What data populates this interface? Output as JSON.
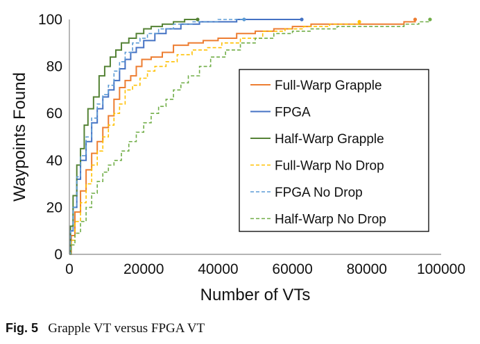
{
  "caption": {
    "label": "Fig. 5",
    "text": "Grapple VT versus FPGA VT"
  },
  "chart_data": {
    "type": "line",
    "title": "",
    "xlabel": "Number of VTs",
    "ylabel": "Waypoints Found",
    "xlim": [
      0,
      100000
    ],
    "ylim": [
      0,
      100
    ],
    "xticks": [
      "0",
      "20000",
      "40000",
      "60000",
      "80000",
      "100000"
    ],
    "yticks": [
      "0",
      "20",
      "40",
      "60",
      "80",
      "100"
    ],
    "grid": false,
    "legend_position": "bottom-right",
    "series": [
      {
        "name": "Full-Warp Grapple",
        "color": "#ED7D31",
        "dash": "solid",
        "points": [
          [
            0,
            0
          ],
          [
            500,
            8
          ],
          [
            1500,
            18
          ],
          [
            3000,
            27
          ],
          [
            4500,
            36
          ],
          [
            6000,
            43
          ],
          [
            7500,
            48
          ],
          [
            9000,
            54
          ],
          [
            10500,
            59
          ],
          [
            12000,
            66
          ],
          [
            13500,
            71
          ],
          [
            15000,
            74
          ],
          [
            16500,
            76
          ],
          [
            18000,
            80
          ],
          [
            19500,
            83
          ],
          [
            22000,
            84
          ],
          [
            25000,
            86
          ],
          [
            28000,
            89
          ],
          [
            32000,
            90
          ],
          [
            36000,
            91
          ],
          [
            40000,
            92
          ],
          [
            45000,
            94
          ],
          [
            50000,
            95
          ],
          [
            55000,
            96
          ],
          [
            60000,
            97
          ],
          [
            65000,
            98
          ],
          [
            70000,
            98
          ],
          [
            80000,
            98
          ],
          [
            90000,
            99
          ],
          [
            93000,
            100
          ]
        ]
      },
      {
        "name": "FPGA",
        "color": "#4472C4",
        "dash": "solid",
        "points": [
          [
            0,
            0
          ],
          [
            300,
            10
          ],
          [
            1000,
            20
          ],
          [
            2000,
            32
          ],
          [
            3000,
            40
          ],
          [
            4500,
            48
          ],
          [
            6000,
            56
          ],
          [
            7500,
            62
          ],
          [
            9000,
            67
          ],
          [
            10500,
            70
          ],
          [
            12000,
            74
          ],
          [
            13500,
            79
          ],
          [
            15000,
            83
          ],
          [
            16500,
            86
          ],
          [
            18000,
            88
          ],
          [
            20000,
            91
          ],
          [
            23000,
            94
          ],
          [
            26000,
            96
          ],
          [
            30000,
            98
          ],
          [
            35000,
            99
          ],
          [
            45000,
            100
          ],
          [
            62500,
            100
          ]
        ]
      },
      {
        "name": "Half-Warp Grapple",
        "color": "#548235",
        "dash": "solid",
        "points": [
          [
            0,
            0
          ],
          [
            300,
            12
          ],
          [
            1000,
            25
          ],
          [
            2000,
            38
          ],
          [
            3000,
            45
          ],
          [
            4000,
            55
          ],
          [
            5000,
            62
          ],
          [
            6500,
            67
          ],
          [
            8000,
            76
          ],
          [
            9500,
            80
          ],
          [
            11000,
            84
          ],
          [
            12500,
            87
          ],
          [
            14000,
            90
          ],
          [
            16000,
            92
          ],
          [
            18000,
            94
          ],
          [
            20000,
            96
          ],
          [
            22000,
            97
          ],
          [
            25000,
            98
          ],
          [
            28000,
            99
          ],
          [
            31000,
            100
          ],
          [
            34500,
            100
          ]
        ]
      },
      {
        "name": "Full-Warp No Drop",
        "color": "#FFC000",
        "dash": "dash",
        "points": [
          [
            0,
            0
          ],
          [
            500,
            6
          ],
          [
            1500,
            14
          ],
          [
            3000,
            22
          ],
          [
            4500,
            30
          ],
          [
            6000,
            38
          ],
          [
            7500,
            44
          ],
          [
            9000,
            50
          ],
          [
            10500,
            55
          ],
          [
            12000,
            60
          ],
          [
            13500,
            64
          ],
          [
            15000,
            70
          ],
          [
            17000,
            72
          ],
          [
            19000,
            75
          ],
          [
            21000,
            78
          ],
          [
            23000,
            80
          ],
          [
            26000,
            82
          ],
          [
            29000,
            85
          ],
          [
            33000,
            87
          ],
          [
            37000,
            88
          ],
          [
            41000,
            90
          ],
          [
            46000,
            92
          ],
          [
            52000,
            95
          ],
          [
            58000,
            96
          ],
          [
            63000,
            97
          ],
          [
            70000,
            98
          ],
          [
            78000,
            99
          ]
        ]
      },
      {
        "name": "FPGA No Drop",
        "color": "#5B9BD5",
        "dash": "dash",
        "points": [
          [
            0,
            0
          ],
          [
            300,
            10
          ],
          [
            1000,
            20
          ],
          [
            2000,
            33
          ],
          [
            3000,
            42
          ],
          [
            4500,
            50
          ],
          [
            6000,
            58
          ],
          [
            7500,
            64
          ],
          [
            9000,
            68
          ],
          [
            10500,
            72
          ],
          [
            12000,
            78
          ],
          [
            13500,
            82
          ],
          [
            15000,
            86
          ],
          [
            17000,
            90
          ],
          [
            19000,
            92
          ],
          [
            21000,
            94
          ],
          [
            24000,
            96
          ],
          [
            28000,
            98
          ],
          [
            33000,
            99
          ],
          [
            40000,
            100
          ],
          [
            47000,
            100
          ]
        ]
      },
      {
        "name": "Half-Warp No Drop",
        "color": "#70AD47",
        "dash": "dash",
        "points": [
          [
            0,
            0
          ],
          [
            500,
            4
          ],
          [
            1500,
            9
          ],
          [
            3000,
            14
          ],
          [
            4500,
            20
          ],
          [
            6000,
            26
          ],
          [
            7500,
            31
          ],
          [
            9000,
            35
          ],
          [
            10500,
            38
          ],
          [
            12000,
            40
          ],
          [
            14000,
            44
          ],
          [
            16000,
            48
          ],
          [
            18000,
            52
          ],
          [
            20000,
            56
          ],
          [
            22000,
            60
          ],
          [
            24000,
            63
          ],
          [
            26000,
            66
          ],
          [
            28000,
            70
          ],
          [
            30000,
            73
          ],
          [
            32000,
            76
          ],
          [
            35000,
            80
          ],
          [
            38000,
            84
          ],
          [
            42000,
            87
          ],
          [
            46000,
            90
          ],
          [
            50000,
            92
          ],
          [
            55000,
            94
          ],
          [
            60000,
            95
          ],
          [
            65000,
            96
          ],
          [
            72000,
            97
          ],
          [
            80000,
            97
          ],
          [
            90000,
            98
          ],
          [
            94000,
            99
          ],
          [
            97000,
            100
          ]
        ]
      }
    ]
  }
}
